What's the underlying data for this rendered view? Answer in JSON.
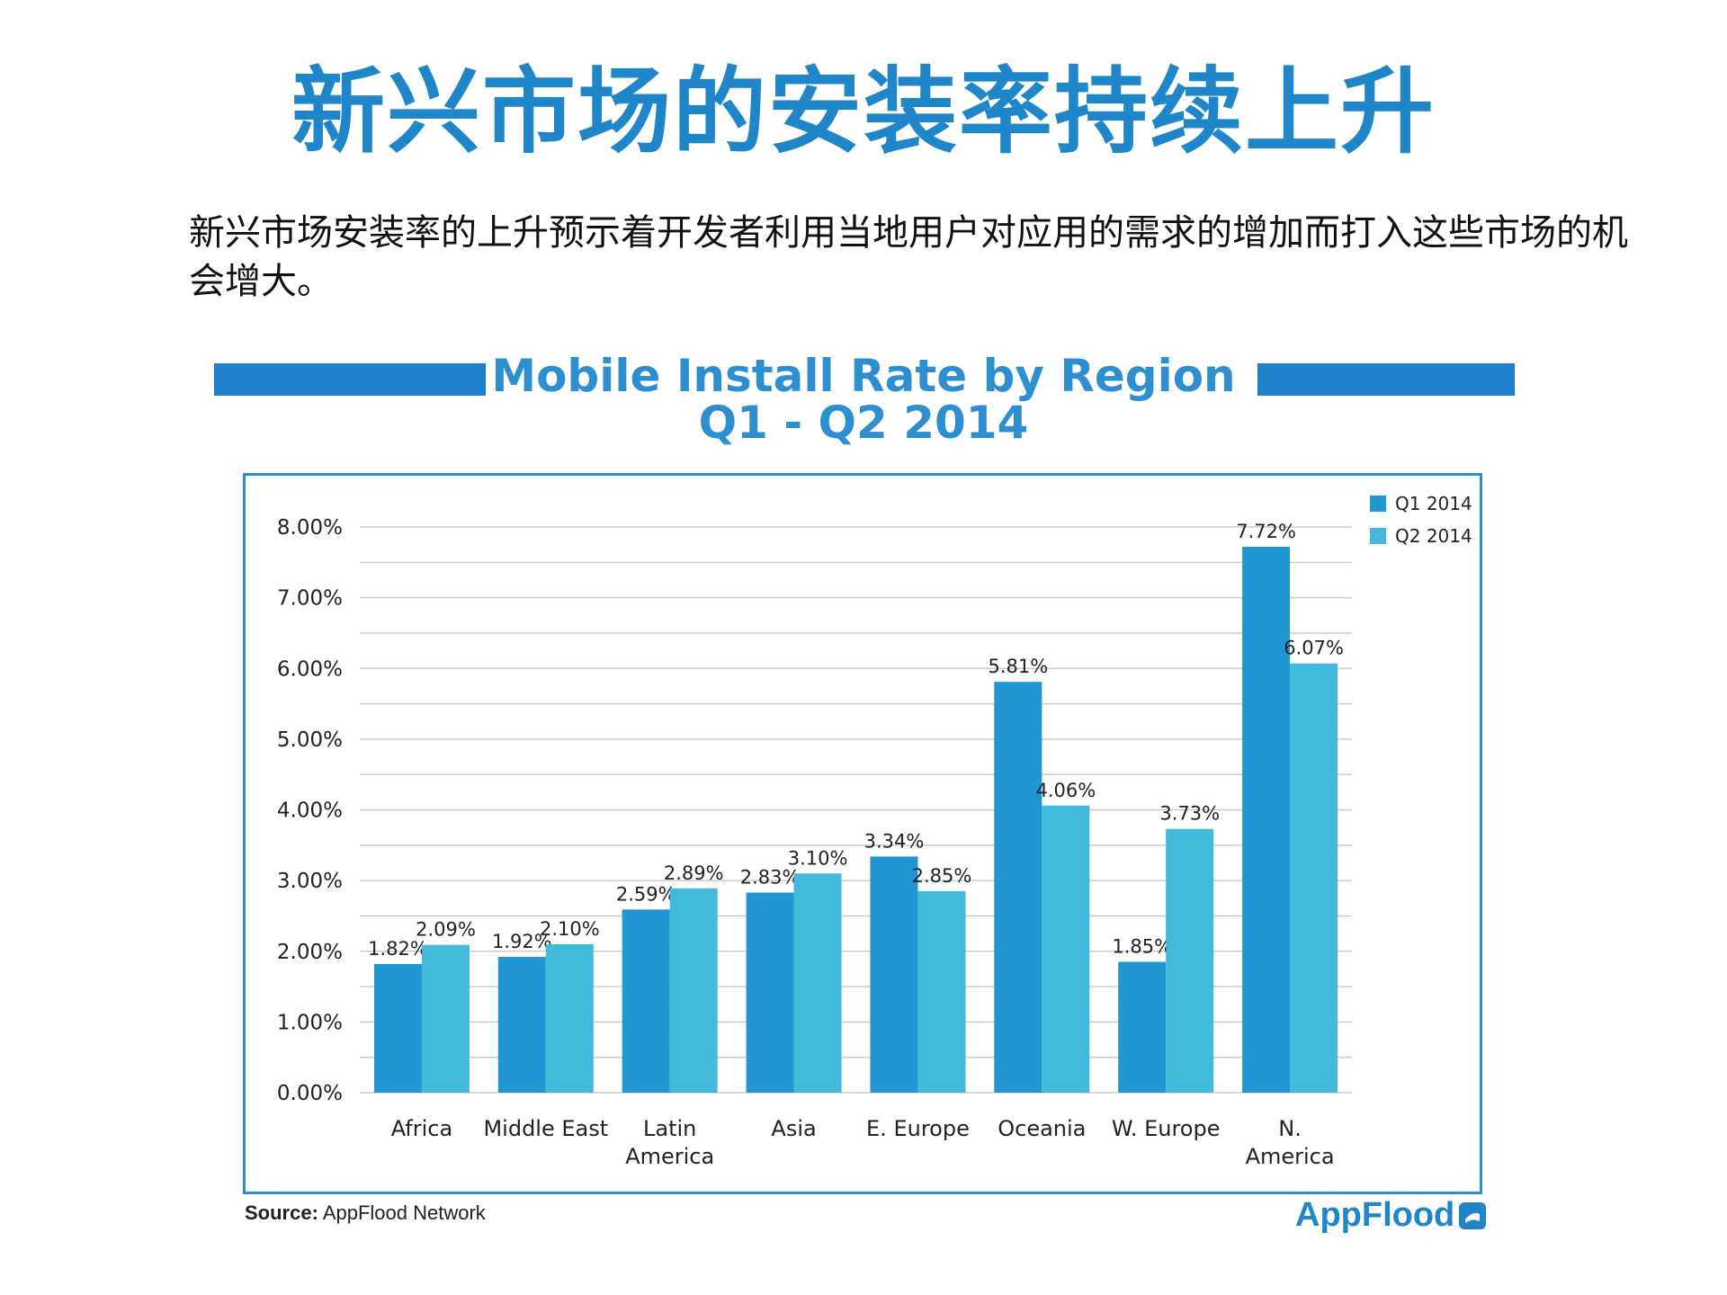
{
  "page": {
    "title": "新兴市场的安装率持续上升",
    "intro": "新兴市场安装率的上升预示着开发者利用当地用户对应用的需求的增加而打入这些市场的机会增大。",
    "source_label": "Source:",
    "source_value": "AppFlood Network",
    "logo_text": "AppFlood",
    "logo_icon": "appflood-logo-icon"
  },
  "colors": {
    "title": "#1f86c9",
    "accent_bar": "#1f7fc8",
    "q1": "#2196d3",
    "q2": "#43b9db",
    "grid": "#cccccc"
  },
  "chart_data": {
    "type": "bar",
    "title_line1": "Mobile Install Rate by Region",
    "title_line2": "Q1 - Q2 2014",
    "categories": [
      [
        "Africa"
      ],
      [
        "Middle East"
      ],
      [
        "Latin",
        "America"
      ],
      [
        "Asia"
      ],
      [
        "E. Europe"
      ],
      [
        "Oceania"
      ],
      [
        "W. Europe"
      ],
      [
        "N.",
        "America"
      ]
    ],
    "series": [
      {
        "name": "Q1 2014",
        "values": [
          1.82,
          1.92,
          2.59,
          2.83,
          3.34,
          5.81,
          1.85,
          7.72
        ],
        "labels": [
          "1.82%",
          "1.92%",
          "2.59%",
          "2.83%",
          "3.34%",
          "5.81%",
          "1.85%",
          "7.72%"
        ]
      },
      {
        "name": "Q2 2014",
        "values": [
          2.09,
          2.1,
          2.89,
          3.1,
          2.85,
          4.06,
          3.73,
          6.07
        ],
        "labels": [
          "2.09%",
          "2.10%",
          "2.89%",
          "3.10%",
          "2.85%",
          "4.06%",
          "3.73%",
          "6.07%"
        ]
      }
    ],
    "ylim": [
      0,
      8
    ],
    "yticks": [
      {
        "value": 0,
        "label": "0.00%"
      },
      {
        "value": 1,
        "label": "1.00%"
      },
      {
        "value": 2,
        "label": "2.00%"
      },
      {
        "value": 3,
        "label": "3.00%"
      },
      {
        "value": 4,
        "label": "4.00%"
      },
      {
        "value": 5,
        "label": "5.00%"
      },
      {
        "value": 6,
        "label": "6.00%"
      },
      {
        "value": 7,
        "label": "7.00%"
      },
      {
        "value": 8,
        "label": "8.00%"
      }
    ],
    "minor_grid_step": 0.5,
    "legend_position": "top-right",
    "grid": true
  }
}
